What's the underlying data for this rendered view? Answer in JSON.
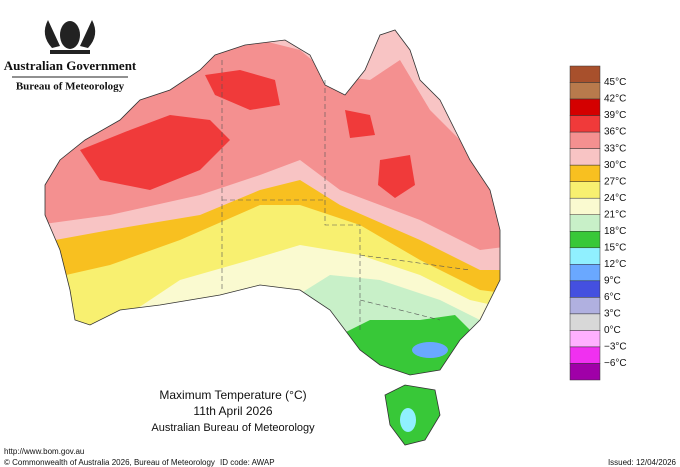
{
  "header": {
    "government": "Australian Government",
    "bureau": "Bureau of Meteorology"
  },
  "legend": {
    "colors": [
      "#a8502c",
      "#b87a4c",
      "#d40000",
      "#f03a3a",
      "#f49090",
      "#f8c4c4",
      "#f8c020",
      "#f8f070",
      "#fafad0",
      "#c8f0c8",
      "#38c838",
      "#90f0ff",
      "#6aa8ff",
      "#4450e0",
      "#b0b0e0",
      "#d8d8d8",
      "#ffb0ff",
      "#f030f0",
      "#a000a8"
    ],
    "labels": [
      "45°C",
      "42°C",
      "39°C",
      "36°C",
      "33°C",
      "30°C",
      "27°C",
      "24°C",
      "21°C",
      "18°C",
      "15°C",
      "12°C",
      "9°C",
      "6°C",
      "3°C",
      "0°C",
      "−3°C",
      "−6°C"
    ]
  },
  "title": {
    "line1": "Maximum Temperature (°C)",
    "line2": "11th April 2026",
    "line3": "Australian Bureau of Meteorology"
  },
  "footer": {
    "url": "http://www.bom.gov.au",
    "copyright": "© Commonwealth of Australia 2026, Bureau of Meteorology",
    "id_code": "ID code: AWAP",
    "issued": "Issued: 12/04/2026"
  }
}
